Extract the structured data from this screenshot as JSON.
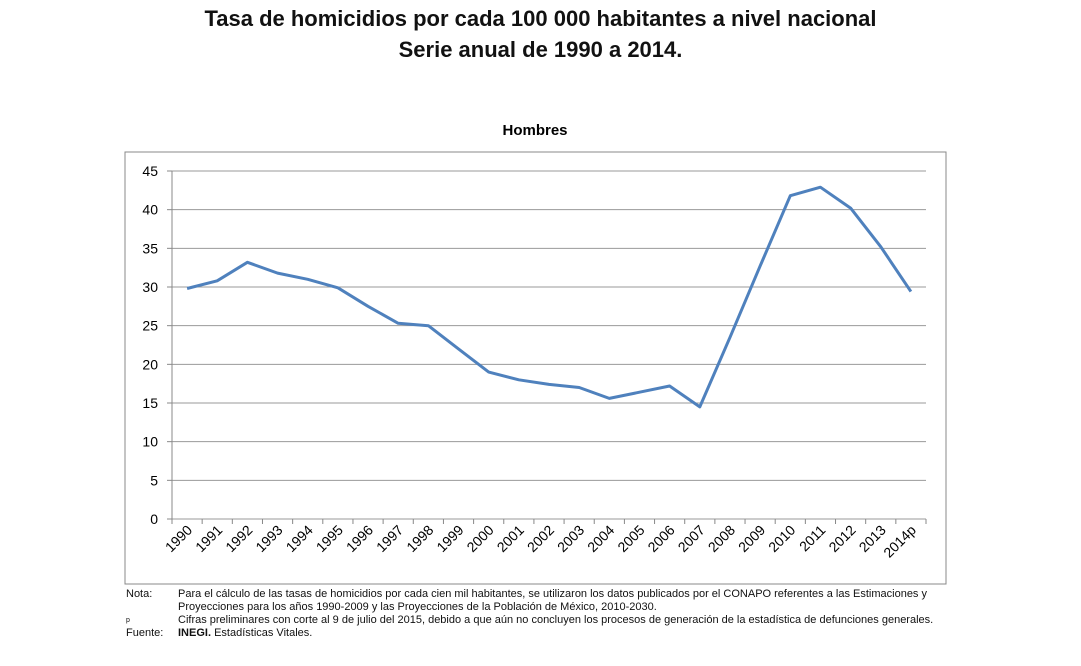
{
  "header": {
    "title_line1": "Tasa de homicidios por cada 100 000 habitantes a nivel nacional",
    "title_line2": "Serie anual de 1990 a 2014."
  },
  "chart_data": {
    "type": "line",
    "title": "Hombres",
    "categories": [
      "1990",
      "1991",
      "1992",
      "1993",
      "1994",
      "1995",
      "1996",
      "1997",
      "1998",
      "1999",
      "2000",
      "2001",
      "2002",
      "2003",
      "2004",
      "2005",
      "2006",
      "2007",
      "2008",
      "2009",
      "2010",
      "2011",
      "2012",
      "2013",
      "2014p"
    ],
    "values": [
      29.8,
      30.8,
      33.2,
      31.8,
      31.0,
      29.9,
      27.5,
      25.3,
      25.0,
      22.0,
      19.0,
      18.0,
      17.4,
      17.0,
      15.6,
      16.4,
      17.2,
      14.5,
      23.5,
      32.7,
      41.8,
      42.9,
      40.2,
      35.2,
      29.4
    ],
    "color": "#4f81bd",
    "ylim": [
      0,
      45
    ],
    "yticks": [
      0,
      5,
      10,
      15,
      20,
      25,
      30,
      35,
      40,
      45
    ],
    "grid": true
  },
  "notes": [
    {
      "label": "Nota:",
      "text": "Para el cálculo de las tasas de homicidios por cada cien mil habitantes, se utilizaron los datos publicados por el CONAPO referentes a las Estimaciones y Proyecciones para los años 1990-2009 y las Proyecciones de la Población de México, 2010-2030."
    },
    {
      "label": "p",
      "text": "Cifras preliminares con corte al 9 de julio del 2015, debido a que aún no concluyen los procesos de generación de la estadística de defunciones generales."
    }
  ],
  "source": {
    "label": "Fuente:",
    "bold": "INEGI.",
    "text": "Estadísticas Vitales."
  }
}
